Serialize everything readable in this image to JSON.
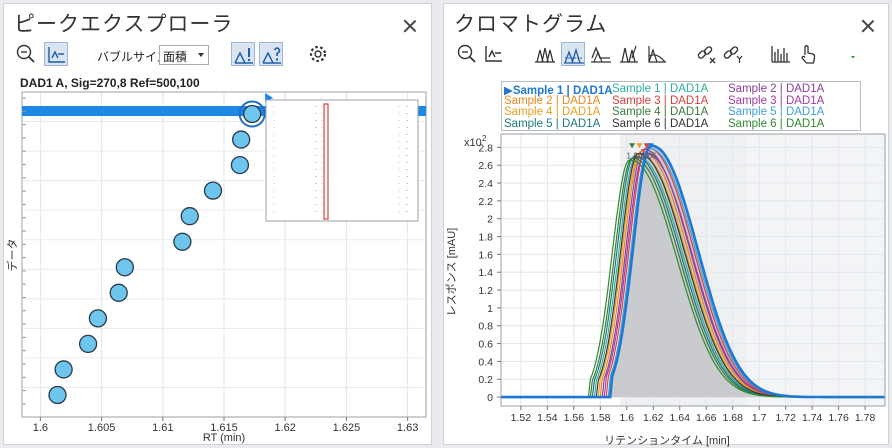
{
  "left": {
    "title": "ピークエクスプローラ",
    "bubble_size_label": "バブルサイズ",
    "bubble_size_value": "面積",
    "data_label": "DAD1 A, Sig=270,8 Ref=500,100",
    "y_axis_label": "データ",
    "x_axis_label": "RT (min)",
    "x_ticks": [
      "1.6",
      "1.605",
      "1.61",
      "1.615",
      "1.62",
      "1.625",
      "1.63"
    ],
    "icons": [
      "zoom-out-icon",
      "peak-chart-icon",
      "settings-icon"
    ]
  },
  "right": {
    "title": "クロマトグラム",
    "y_axis_label": "レスポンス [mAU]",
    "x_axis_label": "リテンションタイム [min]",
    "y_multiplier": "x10",
    "y_multiplier_exp": "2",
    "legend": [
      {
        "label": "Sample 1 | DAD1A",
        "color": "#1e78d2",
        "selected": true
      },
      {
        "label": "Sample 1 | DAD1A",
        "color": "#2ab0a0",
        "selected": false
      },
      {
        "label": "Sample 2 | DAD1A",
        "color": "#8a3c9a",
        "selected": false
      },
      {
        "label": "Sample 2 | DAD1A",
        "color": "#e88820",
        "selected": false
      },
      {
        "label": "Sample 3 | DAD1A",
        "color": "#d84040",
        "selected": false
      },
      {
        "label": "Sample 3 | DAD1A",
        "color": "#a03ca0",
        "selected": false
      },
      {
        "label": "Sample 4 | DAD1A",
        "color": "#e8a020",
        "selected": false
      },
      {
        "label": "Sample 4 | DAD1A",
        "color": "#3a7a3a",
        "selected": false
      },
      {
        "label": "Sample 5 | DAD1A",
        "color": "#40a0d8",
        "selected": false
      },
      {
        "label": "Sample 5 | DAD1A",
        "color": "#1e7a7a",
        "selected": false
      },
      {
        "label": "Sample 6 | DAD1A",
        "color": "#333333",
        "selected": false
      },
      {
        "label": "Sample 6 | DAD1A",
        "color": "#2e8a2e",
        "selected": false
      }
    ]
  },
  "chart_data": [
    {
      "type": "scatter",
      "title": "DAD1 A, Sig=270,8 Ref=500,100",
      "xlabel": "RT (min)",
      "ylabel": "データ",
      "xlim": [
        1.5985,
        1.6315
      ],
      "x_ticks": [
        1.6,
        1.605,
        1.61,
        1.615,
        1.62,
        1.625,
        1.63
      ],
      "points": [
        {
          "x": 1.6014,
          "y": 1
        },
        {
          "x": 1.6019,
          "y": 2
        },
        {
          "x": 1.6039,
          "y": 3
        },
        {
          "x": 1.6047,
          "y": 4
        },
        {
          "x": 1.6064,
          "y": 5
        },
        {
          "x": 1.6069,
          "y": 6
        },
        {
          "x": 1.6116,
          "y": 7
        },
        {
          "x": 1.6122,
          "y": 8
        },
        {
          "x": 1.6141,
          "y": 9
        },
        {
          "x": 1.6163,
          "y": 10
        },
        {
          "x": 1.6164,
          "y": 11
        },
        {
          "x": 1.6173,
          "y": 12
        }
      ],
      "selected_index": 11,
      "bubble_color": "#6ec6ee"
    },
    {
      "type": "line",
      "xlabel": "リテンションタイム [min]",
      "ylabel": "レスポンス [mAU]",
      "xlim": [
        1.505,
        1.795
      ],
      "ylim": [
        -0.1,
        2.95
      ],
      "x_ticks": [
        1.52,
        1.54,
        1.56,
        1.58,
        1.6,
        1.62,
        1.64,
        1.66,
        1.68,
        1.7,
        1.72,
        1.74,
        1.76,
        1.78
      ],
      "y_ticks": [
        0,
        0.2,
        0.4,
        0.6,
        0.8,
        1,
        1.2,
        1.4,
        1.6,
        1.8,
        2,
        2.2,
        2.4,
        2.6,
        2.8
      ],
      "series": [
        {
          "name": "Sample 1 | DAD1A",
          "color": "#1e78d2",
          "apex_rt": 1.618,
          "height": 2.82
        },
        {
          "name": "Sample 1 | DAD1A",
          "color": "#2ab0a0",
          "apex_rt": 1.607,
          "height": 2.7
        },
        {
          "name": "Sample 2 | DAD1A",
          "color": "#8a3c9a",
          "apex_rt": 1.6125,
          "height": 2.78
        },
        {
          "name": "Sample 2 | DAD1A",
          "color": "#e88820",
          "apex_rt": 1.611,
          "height": 2.76
        },
        {
          "name": "Sample 3 | DAD1A",
          "color": "#d84040",
          "apex_rt": 1.615,
          "height": 2.8
        },
        {
          "name": "Sample 3 | DAD1A",
          "color": "#a03ca0",
          "apex_rt": 1.6135,
          "height": 2.74
        },
        {
          "name": "Sample 4 | DAD1A",
          "color": "#e8a020",
          "apex_rt": 1.6095,
          "height": 2.72
        },
        {
          "name": "Sample 4 | DAD1A",
          "color": "#3a7a3a",
          "apex_rt": 1.604,
          "height": 2.68
        },
        {
          "name": "Sample 5 | DAD1A",
          "color": "#40a0d8",
          "apex_rt": 1.6165,
          "height": 2.79
        },
        {
          "name": "Sample 5 | DAD1A",
          "color": "#1e7a7a",
          "apex_rt": 1.6055,
          "height": 2.7
        },
        {
          "name": "Sample 6 | DAD1A",
          "color": "#333333",
          "apex_rt": 1.6085,
          "height": 2.73
        },
        {
          "name": "Sample 6 | DAD1A",
          "color": "#2e8a2e",
          "apex_rt": 1.602,
          "height": 2.66
        }
      ],
      "integration_range": [
        1.595,
        1.69
      ],
      "peak_labels": [
        "1.6",
        "1.6",
        "1.6",
        "1.6"
      ]
    }
  ]
}
